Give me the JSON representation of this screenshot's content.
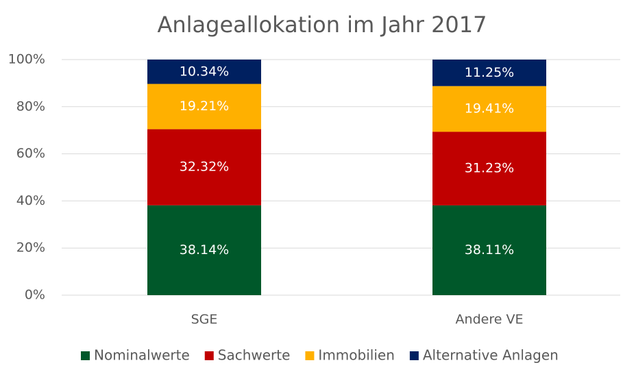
{
  "chart_data": {
    "type": "stacked_bar",
    "title": "Anlageallokation im Jahr 2017",
    "categories": [
      "SGE",
      "Andere VE"
    ],
    "series": [
      {
        "name": "Nominalwerte",
        "color": "#00582a",
        "values": [
          38.14,
          38.11
        ],
        "value_labels": [
          "38.14%",
          "38.11%"
        ]
      },
      {
        "name": "Sachwerte",
        "color": "#c00000",
        "values": [
          32.32,
          31.23
        ],
        "value_labels": [
          "32.32%",
          "31.23%"
        ]
      },
      {
        "name": "Immobilien",
        "color": "#ffb000",
        "values": [
          19.21,
          19.41
        ],
        "value_labels": [
          "19.21%",
          "19.41%"
        ]
      },
      {
        "name": "Alternative Anlagen",
        "color": "#002060",
        "values": [
          10.34,
          11.25
        ],
        "value_labels": [
          "10.34%",
          "11.25%"
        ]
      }
    ],
    "ylim": [
      0,
      100
    ],
    "yticks": [
      {
        "value": 0,
        "label": "0%"
      },
      {
        "value": 20,
        "label": "20%"
      },
      {
        "value": 40,
        "label": "40%"
      },
      {
        "value": 60,
        "label": "60%"
      },
      {
        "value": 80,
        "label": "80%"
      },
      {
        "value": 100,
        "label": "100%"
      }
    ],
    "grid": true,
    "legend": "bottom"
  }
}
